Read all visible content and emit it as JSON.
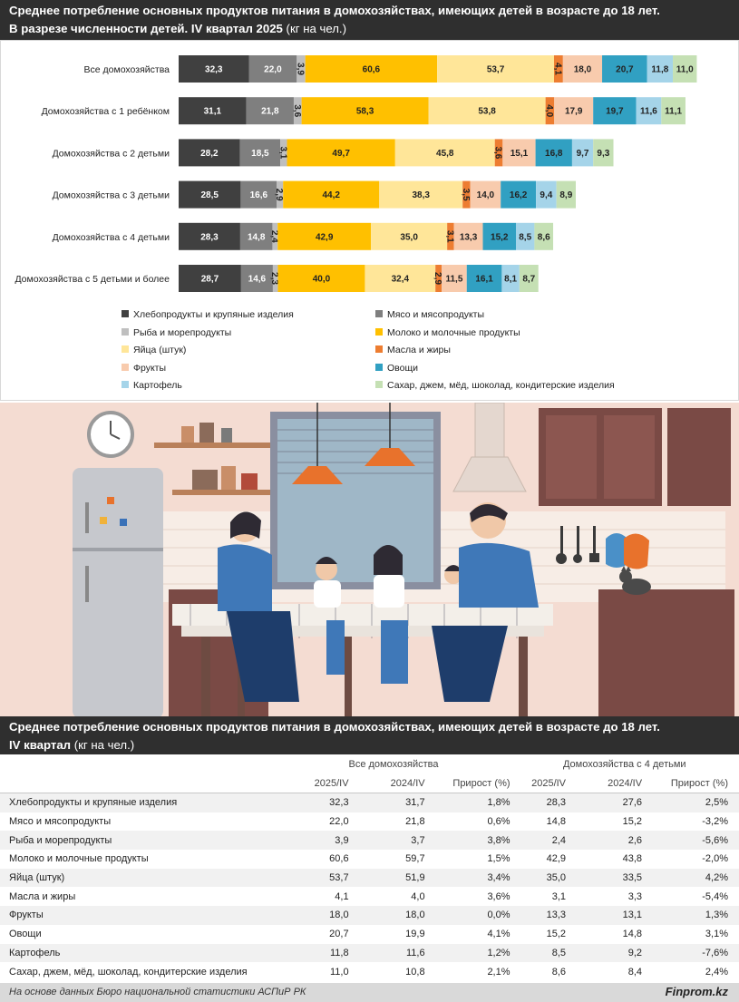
{
  "header1": {
    "line1": "Среднее потребление основных продуктов питания в домохозяйствах, имеющих детей в возрасте до 18 лет.",
    "line2_bold": "В разрезе численности детей. IV квартал 2025",
    "line2_unit": " (кг на чел.)"
  },
  "chart_data": {
    "type": "bar",
    "orientation": "horizontal",
    "stacked": true,
    "categories": [
      "Все домохозяйства",
      "Домохозяйства с 1 ребёнком",
      "Домохозяйства с 2 детьми",
      "Домохозяйства с 3 детьми",
      "Домохозяйства с 4 детьми",
      "Домохозяйства с 5 детьми и более"
    ],
    "series": [
      {
        "name": "Хлебопродукты и крупяные изделия",
        "color": "#404040",
        "values": [
          32.3,
          31.1,
          28.2,
          28.5,
          28.3,
          28.7
        ],
        "labels": [
          "32,3",
          "31,1",
          "28,2",
          "28,5",
          "28,3",
          "28,7"
        ]
      },
      {
        "name": "Мясо и мясопродукты",
        "color": "#7f7f7f",
        "values": [
          22.0,
          21.8,
          18.5,
          16.6,
          14.8,
          14.6
        ],
        "labels": [
          "22,0",
          "21,8",
          "18,5",
          "16,6",
          "14,8",
          "14,6"
        ]
      },
      {
        "name": "Рыба и морепродукты",
        "color": "#bfbfbf",
        "values": [
          3.9,
          3.6,
          3.1,
          2.9,
          2.4,
          2.3
        ],
        "labels": [
          "3,9",
          "3,6",
          "3,1",
          "2,9",
          "2,4",
          "2,3"
        ]
      },
      {
        "name": "Молоко и молочные продукты",
        "color": "#ffc000",
        "values": [
          60.6,
          58.3,
          49.7,
          44.2,
          42.9,
          40.0
        ],
        "labels": [
          "60,6",
          "58,3",
          "49,7",
          "44,2",
          "42,9",
          "40,0"
        ]
      },
      {
        "name": "Яйца (штук)",
        "color": "#ffe699",
        "values": [
          53.7,
          53.8,
          45.8,
          38.3,
          35.0,
          32.4
        ],
        "labels": [
          "53,7",
          "53,8",
          "45,8",
          "38,3",
          "35,0",
          "32,4"
        ]
      },
      {
        "name": "Масла и жиры",
        "color": "#ed7d31",
        "values": [
          4.1,
          4.0,
          3.6,
          3.5,
          3.1,
          2.9
        ],
        "labels": [
          "4,1",
          "4,0",
          "3,6",
          "3,5",
          "3,1",
          "2,9"
        ]
      },
      {
        "name": "Фрукты",
        "color": "#f8cbad",
        "values": [
          18.0,
          17.9,
          15.1,
          14.0,
          13.3,
          11.5
        ],
        "labels": [
          "18,0",
          "17,9",
          "15,1",
          "14,0",
          "13,3",
          "11,5"
        ]
      },
      {
        "name": "Овощи",
        "color": "#31a0c2",
        "values": [
          20.7,
          19.7,
          16.8,
          16.2,
          15.2,
          16.1
        ],
        "labels": [
          "20,7",
          "19,7",
          "16,8",
          "16,2",
          "15,2",
          "16,1"
        ]
      },
      {
        "name": "Картофель",
        "color": "#a5d4e9",
        "values": [
          11.8,
          11.6,
          9.7,
          9.4,
          8.5,
          8.1
        ],
        "labels": [
          "11,8",
          "11,6",
          "9,7",
          "9,4",
          "8,5",
          "8,1"
        ]
      },
      {
        "name": "Сахар, джем, мёд, шоколад, кондитерские изделия",
        "color": "#c5e0b4",
        "values": [
          11.0,
          11.1,
          9.3,
          8.9,
          8.6,
          8.7
        ],
        "labels": [
          "11,0",
          "11,1",
          "9,3",
          "8,9",
          "8,6",
          "8,7"
        ]
      }
    ],
    "xlim": [
      0,
      251
    ],
    "grid": false,
    "legend_position": "bottom"
  },
  "header2": {
    "line1": "Среднее потребление основных продуктов питания в домохозяйствах, имеющих детей в возрасте до 18 лет.",
    "line2_bold": "IV квартал",
    "line2_unit": " (кг на чел.)"
  },
  "table": {
    "group_all": "Все домохозяйства",
    "group_4": "Домохозяйства с 4 детьми",
    "col_2025": "2025/IV",
    "col_2024": "2024/IV",
    "col_growth": "Прирост (%)",
    "rows": [
      {
        "name": "Хлебопродукты и крупяные изделия",
        "a25": "32,3",
        "a24": "31,7",
        "ag": "1,8%",
        "f25": "28,3",
        "f24": "27,6",
        "fg": "2,5%"
      },
      {
        "name": "Мясо и мясопродукты",
        "a25": "22,0",
        "a24": "21,8",
        "ag": "0,6%",
        "f25": "14,8",
        "f24": "15,2",
        "fg": "-3,2%"
      },
      {
        "name": "Рыба и морепродукты",
        "a25": "3,9",
        "a24": "3,7",
        "ag": "3,8%",
        "f25": "2,4",
        "f24": "2,6",
        "fg": "-5,6%"
      },
      {
        "name": "Молоко и молочные продукты",
        "a25": "60,6",
        "a24": "59,7",
        "ag": "1,5%",
        "f25": "42,9",
        "f24": "43,8",
        "fg": "-2,0%"
      },
      {
        "name": "Яйца (штук)",
        "a25": "53,7",
        "a24": "51,9",
        "ag": "3,4%",
        "f25": "35,0",
        "f24": "33,5",
        "fg": "4,2%"
      },
      {
        "name": "Масла и жиры",
        "a25": "4,1",
        "a24": "4,0",
        "ag": "3,6%",
        "f25": "3,1",
        "f24": "3,3",
        "fg": "-5,4%"
      },
      {
        "name": "Фрукты",
        "a25": "18,0",
        "a24": "18,0",
        "ag": "0,0%",
        "f25": "13,3",
        "f24": "13,1",
        "fg": "1,3%"
      },
      {
        "name": "Овощи",
        "a25": "20,7",
        "a24": "19,9",
        "ag": "4,1%",
        "f25": "15,2",
        "f24": "14,8",
        "fg": "3,1%"
      },
      {
        "name": "Картофель",
        "a25": "11,8",
        "a24": "11,6",
        "ag": "1,2%",
        "f25": "8,5",
        "f24": "9,2",
        "fg": "-7,6%"
      },
      {
        "name": "Сахар, джем, мёд, шоколад, кондитерские изделия",
        "a25": "11,0",
        "a24": "10,8",
        "ag": "2,1%",
        "f25": "8,6",
        "f24": "8,4",
        "fg": "2,4%"
      }
    ]
  },
  "footer": {
    "source": "На основе данных Бюро национальной статистики АСПиР РК",
    "brand": "Finprom.kz"
  }
}
